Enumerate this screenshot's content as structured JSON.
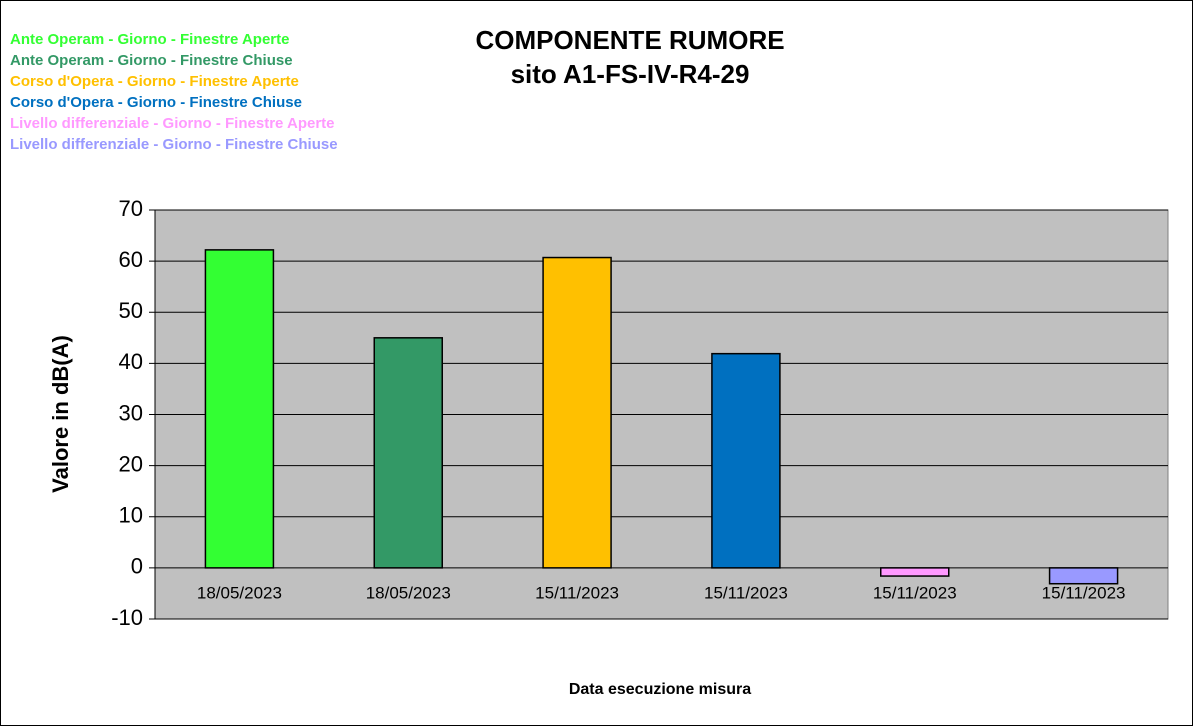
{
  "chart_data": {
    "type": "bar",
    "title": [
      "COMPONENTE RUMORE",
      "sito A1-FS-IV-R4-29"
    ],
    "x_label": "Data esecuzione misura",
    "y_label": "Valore in dB(A)",
    "categories": [
      "18/05/2023",
      "18/05/2023",
      "15/11/2023",
      "15/11/2023",
      "15/11/2023",
      "15/11/2023"
    ],
    "series": [
      {
        "name": "Ante Operam - Giorno - Finestre Aperte",
        "color": "#33ff33",
        "values": [
          62.2,
          null,
          null,
          null,
          null,
          null
        ]
      },
      {
        "name": "Ante Operam - Giorno - Finestre Chiuse",
        "color": "#339966",
        "values": [
          null,
          45.0,
          null,
          null,
          null,
          null
        ]
      },
      {
        "name": "Corso d'Opera - Giorno - Finestre Aperte",
        "color": "#ffc000",
        "values": [
          null,
          null,
          60.7,
          null,
          null,
          null
        ]
      },
      {
        "name": "Corso d'Opera  - Giorno - Finestre Chiuse",
        "color": "#0070c0",
        "values": [
          null,
          null,
          null,
          41.9,
          null,
          null
        ]
      },
      {
        "name": "Livello differenziale - Giorno - Finestre Aperte",
        "color": "#ff99ff",
        "values": [
          null,
          null,
          null,
          null,
          -1.6,
          null
        ]
      },
      {
        "name": "Livello differenziale - Giorno - Finestre Chiuse",
        "color": "#9999ff",
        "values": [
          null,
          null,
          null,
          null,
          null,
          -3.1
        ]
      }
    ],
    "ylim": [
      -10,
      70
    ],
    "yticks": [
      -10,
      0,
      10,
      20,
      30,
      40,
      50,
      60,
      70
    ],
    "grid": true,
    "plot_background": "#c0c0c0",
    "legend": "top-left"
  }
}
